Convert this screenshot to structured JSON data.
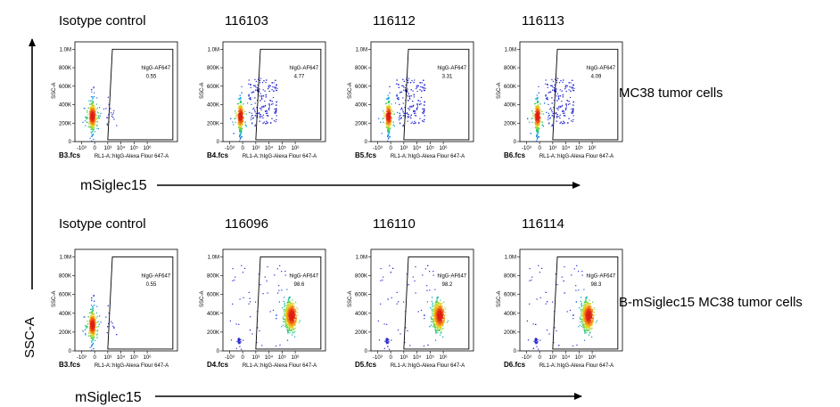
{
  "chart_data": [
    {
      "type": "scatter",
      "row": 0,
      "title": "Isotype control",
      "file": "B3.fcs",
      "gate_label": "hIgG-AF647",
      "gate_value": "0.55",
      "xlabel": "RL1-A::hIgG-Alexa Flour  647-A",
      "ylabel": "SSC-A",
      "x_ticks": [
        "-10³",
        "0",
        "10³",
        "10⁴",
        "10⁵",
        "10⁶"
      ],
      "y_ticks": [
        "0",
        "200K",
        "400K",
        "600K",
        "800K",
        "1.0M"
      ],
      "gated_percent": 0.55,
      "population": "negative"
    },
    {
      "type": "scatter",
      "row": 0,
      "title": "116103",
      "file": "B4.fcs",
      "gate_label": "hIgG-AF647",
      "gate_value": "4.77",
      "xlabel": "RL1-A::hIgG-Alexa Flour  647-A",
      "ylabel": "SSC-A",
      "x_ticks": [
        "-10³",
        "0",
        "10³",
        "10⁴",
        "10⁵",
        "10⁶"
      ],
      "y_ticks": [
        "0",
        "200K",
        "400K",
        "600K",
        "800K",
        "1.0M"
      ],
      "gated_percent": 4.77,
      "population": "negative"
    },
    {
      "type": "scatter",
      "row": 0,
      "title": "116112",
      "file": "B5.fcs",
      "gate_label": "hIgG-AF647",
      "gate_value": "3.31",
      "xlabel": "RL1-A::hIgG-Alexa Flour  647-A",
      "ylabel": "SSC-A",
      "x_ticks": [
        "-10³",
        "0",
        "10³",
        "10⁴",
        "10⁵",
        "10⁶"
      ],
      "y_ticks": [
        "0",
        "200K",
        "400K",
        "600K",
        "800K",
        "1.0M"
      ],
      "gated_percent": 3.31,
      "population": "negative"
    },
    {
      "type": "scatter",
      "row": 0,
      "title": "116113",
      "file": "B6.fcs",
      "gate_label": "hIgG-AF647",
      "gate_value": "4.09",
      "xlabel": "RL1-A::hIgG-Alexa Flour  647-A",
      "ylabel": "SSC-A",
      "x_ticks": [
        "-10³",
        "0",
        "10³",
        "10⁴",
        "10⁵",
        "10⁶"
      ],
      "y_ticks": [
        "0",
        "200K",
        "400K",
        "600K",
        "800K",
        "1.0M"
      ],
      "gated_percent": 4.09,
      "population": "negative"
    },
    {
      "type": "scatter",
      "row": 1,
      "title": "Isotype control",
      "file": "B3.fcs",
      "gate_label": "hIgG-AF647",
      "gate_value": "0.55",
      "xlabel": "RL1-A::hIgG-Alexa Flour  647-A",
      "ylabel": "SSC-A",
      "x_ticks": [
        "-10³",
        "0",
        "10³",
        "10⁴",
        "10⁵",
        "10⁶"
      ],
      "y_ticks": [
        "0",
        "200K",
        "400K",
        "600K",
        "800K",
        "1.0M"
      ],
      "gated_percent": 0.55,
      "population": "negative"
    },
    {
      "type": "scatter",
      "row": 1,
      "title": "116096",
      "file": "D4.fcs",
      "gate_label": "hIgG-AF647",
      "gate_value": "98.6",
      "xlabel": "RL1-A::hIgG-Alexa Flour  647-A",
      "ylabel": "SSC-A",
      "x_ticks": [
        "-10³",
        "0",
        "10³",
        "10⁴",
        "10⁵",
        "10⁶"
      ],
      "y_ticks": [
        "0",
        "200K",
        "400K",
        "600K",
        "800K",
        "1.0M"
      ],
      "gated_percent": 98.6,
      "population": "positive"
    },
    {
      "type": "scatter",
      "row": 1,
      "title": "116110",
      "file": "D5.fcs",
      "gate_label": "hIgG-AF647",
      "gate_value": "98.2",
      "xlabel": "RL1-A::hIgG-Alexa Flour  647-A",
      "ylabel": "SSC-A",
      "x_ticks": [
        "-10³",
        "0",
        "10³",
        "10⁴",
        "10⁵",
        "10⁶"
      ],
      "y_ticks": [
        "0",
        "200K",
        "400K",
        "600K",
        "800K",
        "1.0M"
      ],
      "gated_percent": 98.2,
      "population": "positive"
    },
    {
      "type": "scatter",
      "row": 1,
      "title": "116114",
      "file": "D6.fcs",
      "gate_label": "hIgG-AF647",
      "gate_value": "98.3",
      "xlabel": "RL1-A::hIgG-Alexa Flour  647-A",
      "ylabel": "SSC-A",
      "x_ticks": [
        "-10³",
        "0",
        "10³",
        "10⁴",
        "10⁵",
        "10⁶"
      ],
      "y_ticks": [
        "0",
        "200K",
        "400K",
        "600K",
        "800K",
        "1.0M"
      ],
      "gated_percent": 98.3,
      "population": "positive"
    }
  ],
  "labels": {
    "row_labels": [
      "MC38 tumor cells",
      "B-mSiglec15 MC38  tumor cells"
    ],
    "x_arrow_label": "mSiglec15",
    "y_arrow_label": "SSC-A"
  }
}
